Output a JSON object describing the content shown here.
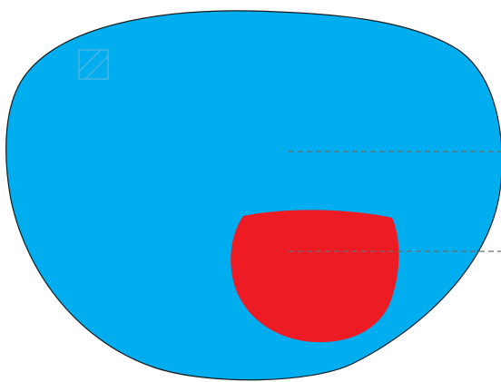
{
  "diagram": {
    "type": "bifocal-lens-diagram",
    "shapes": {
      "lens": {
        "name": "lens-outline",
        "fill": "#00AEEF",
        "stroke": "#1a1a1a"
      },
      "segment": {
        "name": "bifocal-segment",
        "fill": "#ED1C24"
      },
      "logo": {
        "name": "lens-engraving-logo",
        "icon": "engraving-mark-icon",
        "stroke": "#5ab6df"
      }
    },
    "leader_lines": [
      {
        "name": "distance-zone-leader-line",
        "color": "#6d6d6d"
      },
      {
        "name": "near-zone-leader-line",
        "color": "#6d6d6d"
      }
    ]
  }
}
